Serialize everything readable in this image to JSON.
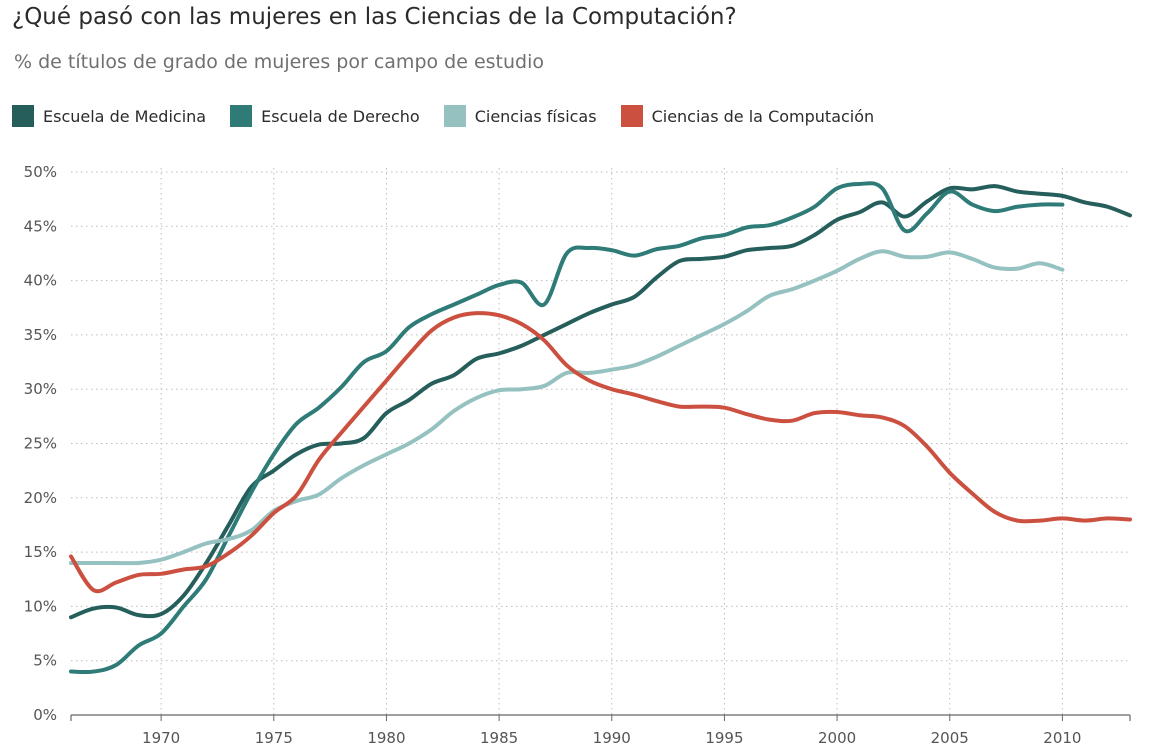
{
  "chart_data": {
    "type": "line",
    "title": "¿Qué pasó con las mujeres en las Ciencias de la Computación?",
    "subtitle": "% de títulos de grado de mujeres por campo de estudio",
    "xlabel": "",
    "ylabel": "",
    "xlim": [
      1966,
      2013
    ],
    "ylim": [
      0,
      50
    ],
    "x_ticks": [
      1970,
      1975,
      1980,
      1985,
      1990,
      1995,
      2000,
      2005,
      2010
    ],
    "y_ticks": [
      0,
      5,
      10,
      15,
      20,
      25,
      30,
      35,
      40,
      45,
      50
    ],
    "x_tick_labels": [
      "1970",
      "1975",
      "1980",
      "1985",
      "1990",
      "1995",
      "2000",
      "2005",
      "2010"
    ],
    "y_tick_labels": [
      "0%",
      "5%",
      "10%",
      "15%",
      "20%",
      "25%",
      "30%",
      "35%",
      "40%",
      "45%",
      "50%"
    ],
    "grid": true,
    "legend_position": "top-left",
    "series": [
      {
        "name": "Escuela de Medicina",
        "color": "#255e5b",
        "points": [
          [
            1966,
            9.0
          ],
          [
            1967,
            9.8
          ],
          [
            1968,
            9.9
          ],
          [
            1969,
            9.2
          ],
          [
            1970,
            9.3
          ],
          [
            1971,
            11.0
          ],
          [
            1972,
            14.0
          ],
          [
            1973,
            17.5
          ],
          [
            1974,
            21.0
          ],
          [
            1975,
            22.5
          ],
          [
            1976,
            24.0
          ],
          [
            1977,
            24.9
          ],
          [
            1978,
            25.0
          ],
          [
            1979,
            25.5
          ],
          [
            1980,
            27.8
          ],
          [
            1981,
            29.0
          ],
          [
            1982,
            30.5
          ],
          [
            1983,
            31.3
          ],
          [
            1984,
            32.8
          ],
          [
            1985,
            33.3
          ],
          [
            1986,
            34.0
          ],
          [
            1987,
            35.0
          ],
          [
            1988,
            36.0
          ],
          [
            1989,
            37.0
          ],
          [
            1990,
            37.8
          ],
          [
            1991,
            38.5
          ],
          [
            1992,
            40.3
          ],
          [
            1993,
            41.8
          ],
          [
            1994,
            42.0
          ],
          [
            1995,
            42.2
          ],
          [
            1996,
            42.8
          ],
          [
            1997,
            43.0
          ],
          [
            1998,
            43.2
          ],
          [
            1999,
            44.2
          ],
          [
            2000,
            45.6
          ],
          [
            2001,
            46.3
          ],
          [
            2002,
            47.2
          ],
          [
            2003,
            45.9
          ],
          [
            2004,
            47.3
          ],
          [
            2005,
            48.5
          ],
          [
            2006,
            48.4
          ],
          [
            2007,
            48.7
          ],
          [
            2008,
            48.2
          ],
          [
            2009,
            48.0
          ],
          [
            2010,
            47.8
          ],
          [
            2011,
            47.2
          ],
          [
            2012,
            46.8
          ],
          [
            2013,
            46.0
          ]
        ]
      },
      {
        "name": "Escuela de Derecho",
        "color": "#2e7b78",
        "points": [
          [
            1966,
            4.0
          ],
          [
            1967,
            4.0
          ],
          [
            1968,
            4.6
          ],
          [
            1969,
            6.4
          ],
          [
            1970,
            7.5
          ],
          [
            1971,
            10.0
          ],
          [
            1972,
            12.5
          ],
          [
            1973,
            16.5
          ],
          [
            1974,
            20.5
          ],
          [
            1975,
            24.0
          ],
          [
            1976,
            26.8
          ],
          [
            1977,
            28.3
          ],
          [
            1978,
            30.2
          ],
          [
            1979,
            32.5
          ],
          [
            1980,
            33.5
          ],
          [
            1981,
            35.7
          ],
          [
            1982,
            36.9
          ],
          [
            1983,
            37.8
          ],
          [
            1984,
            38.7
          ],
          [
            1985,
            39.6
          ],
          [
            1986,
            39.8
          ],
          [
            1987,
            37.8
          ],
          [
            1988,
            42.5
          ],
          [
            1989,
            43.0
          ],
          [
            1990,
            42.8
          ],
          [
            1991,
            42.3
          ],
          [
            1992,
            42.9
          ],
          [
            1993,
            43.2
          ],
          [
            1994,
            43.9
          ],
          [
            1995,
            44.2
          ],
          [
            1996,
            44.9
          ],
          [
            1997,
            45.1
          ],
          [
            1998,
            45.8
          ],
          [
            1999,
            46.8
          ],
          [
            2000,
            48.5
          ],
          [
            2001,
            48.9
          ],
          [
            2002,
            48.5
          ],
          [
            2003,
            44.6
          ],
          [
            2004,
            46.2
          ],
          [
            2005,
            48.2
          ],
          [
            2006,
            47.0
          ],
          [
            2007,
            46.4
          ],
          [
            2008,
            46.8
          ],
          [
            2009,
            47.0
          ],
          [
            2010,
            47.0
          ]
        ]
      },
      {
        "name": "Ciencias físicas",
        "color": "#95c2c0",
        "points": [
          [
            1966,
            14.0
          ],
          [
            1967,
            14.0
          ],
          [
            1968,
            14.0
          ],
          [
            1969,
            14.0
          ],
          [
            1970,
            14.3
          ],
          [
            1971,
            15.0
          ],
          [
            1972,
            15.8
          ],
          [
            1973,
            16.2
          ],
          [
            1974,
            17.0
          ],
          [
            1975,
            18.8
          ],
          [
            1976,
            19.7
          ],
          [
            1977,
            20.3
          ],
          [
            1978,
            21.8
          ],
          [
            1979,
            23.0
          ],
          [
            1980,
            24.0
          ],
          [
            1981,
            25.0
          ],
          [
            1982,
            26.3
          ],
          [
            1983,
            28.0
          ],
          [
            1984,
            29.2
          ],
          [
            1985,
            29.9
          ],
          [
            1986,
            30.0
          ],
          [
            1987,
            30.3
          ],
          [
            1988,
            31.5
          ],
          [
            1989,
            31.5
          ],
          [
            1990,
            31.8
          ],
          [
            1991,
            32.2
          ],
          [
            1992,
            33.0
          ],
          [
            1993,
            34.0
          ],
          [
            1994,
            35.0
          ],
          [
            1995,
            36.0
          ],
          [
            1996,
            37.2
          ],
          [
            1997,
            38.6
          ],
          [
            1998,
            39.2
          ],
          [
            1999,
            40.0
          ],
          [
            2000,
            40.9
          ],
          [
            2001,
            42.0
          ],
          [
            2002,
            42.7
          ],
          [
            2003,
            42.2
          ],
          [
            2004,
            42.2
          ],
          [
            2005,
            42.6
          ],
          [
            2006,
            42.0
          ],
          [
            2007,
            41.2
          ],
          [
            2008,
            41.1
          ],
          [
            2009,
            41.6
          ],
          [
            2010,
            41.0
          ]
        ]
      },
      {
        "name": "Ciencias de la Computación",
        "color": "#cc5040",
        "points": [
          [
            1966,
            14.6
          ],
          [
            1967,
            11.5
          ],
          [
            1968,
            12.2
          ],
          [
            1969,
            12.9
          ],
          [
            1970,
            13.0
          ],
          [
            1971,
            13.4
          ],
          [
            1972,
            13.7
          ],
          [
            1973,
            14.9
          ],
          [
            1974,
            16.5
          ],
          [
            1975,
            18.6
          ],
          [
            1976,
            20.2
          ],
          [
            1977,
            23.5
          ],
          [
            1978,
            26.0
          ],
          [
            1979,
            28.4
          ],
          [
            1980,
            30.8
          ],
          [
            1981,
            33.2
          ],
          [
            1982,
            35.4
          ],
          [
            1983,
            36.6
          ],
          [
            1984,
            37.0
          ],
          [
            1985,
            36.8
          ],
          [
            1986,
            36.0
          ],
          [
            1987,
            34.5
          ],
          [
            1988,
            32.2
          ],
          [
            1989,
            30.8
          ],
          [
            1990,
            30.0
          ],
          [
            1991,
            29.5
          ],
          [
            1992,
            28.9
          ],
          [
            1993,
            28.4
          ],
          [
            1994,
            28.4
          ],
          [
            1995,
            28.3
          ],
          [
            1996,
            27.7
          ],
          [
            1997,
            27.2
          ],
          [
            1998,
            27.1
          ],
          [
            1999,
            27.8
          ],
          [
            2000,
            27.9
          ],
          [
            2001,
            27.6
          ],
          [
            2002,
            27.4
          ],
          [
            2003,
            26.6
          ],
          [
            2004,
            24.7
          ],
          [
            2005,
            22.3
          ],
          [
            2006,
            20.4
          ],
          [
            2007,
            18.7
          ],
          [
            2008,
            17.9
          ],
          [
            2009,
            17.9
          ],
          [
            2010,
            18.1
          ],
          [
            2011,
            17.9
          ],
          [
            2012,
            18.1
          ],
          [
            2013,
            18.0
          ]
        ]
      }
    ]
  }
}
